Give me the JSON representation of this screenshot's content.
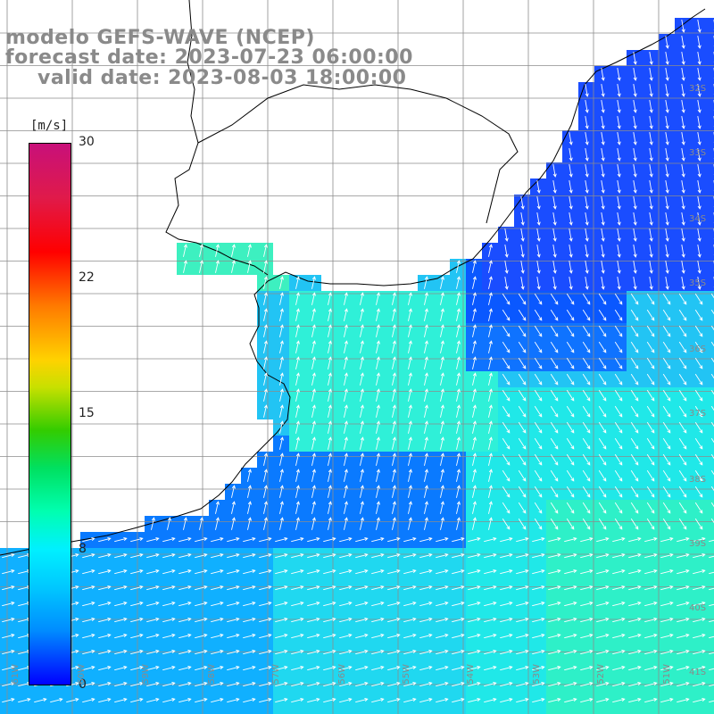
{
  "title": {
    "line1": "modelo GEFS-WAVE (NCEP)",
    "line2": "forecast date: 2023-07-23 06:00:00",
    "line3": "valid date: 2023-08-03 18:00:00"
  },
  "colorbar": {
    "unit": "[m/s]",
    "ticks": [
      {
        "label": "30",
        "value": 30
      },
      {
        "label": "22",
        "value": 22
      },
      {
        "label": "15",
        "value": 15
      },
      {
        "label": "8",
        "value": 8
      },
      {
        "label": "0",
        "value": 0
      }
    ]
  },
  "lat_labels": [
    "32S",
    "33S",
    "34S",
    "35S",
    "36S",
    "37S",
    "38S",
    "39S",
    "40S",
    "41S"
  ],
  "lon_labels": [
    "61W",
    "60W",
    "59W",
    "58W",
    "57W",
    "56W",
    "55W",
    "54W",
    "53W",
    "52W",
    "51W"
  ],
  "colors": {
    "land": "#ffffff",
    "coast": "#000000",
    "grid": "#8c8c8c",
    "arrow": "#ffffff"
  }
}
